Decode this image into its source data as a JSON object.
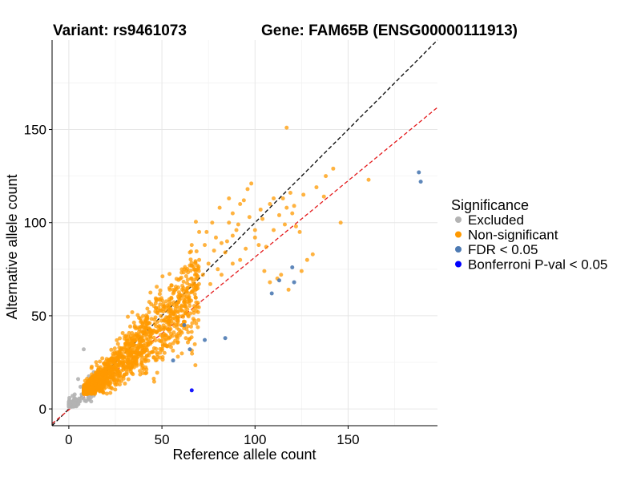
{
  "chart_data": {
    "type": "scatter",
    "title_left": "Variant: rs9461073",
    "title_right": "Gene: FAM65B (ENSG00000111913)",
    "xlabel": "Reference allele count",
    "ylabel": "Alternative allele count",
    "xlim": [
      -9,
      198
    ],
    "ylim": [
      -9,
      198
    ],
    "xticks": [
      0,
      50,
      100,
      150
    ],
    "yticks": [
      0,
      50,
      100,
      150
    ],
    "grid": true,
    "reference_lines": [
      {
        "name": "identity",
        "slope": 1.0,
        "intercept": 0,
        "color": "#000000",
        "style": "dashed"
      },
      {
        "name": "fit",
        "slope": 0.82,
        "intercept": -0.5,
        "color": "#e41a1c",
        "style": "dashed"
      }
    ],
    "legend": {
      "title": "Significance",
      "position": "right",
      "entries": [
        {
          "label": "Excluded",
          "color": "#b3b3b3"
        },
        {
          "label": "Non-significant",
          "color": "#ff9900"
        },
        {
          "label": "FDR < 0.05",
          "color": "#4d7ab3"
        },
        {
          "label": "Bonferroni P-val < 0.05",
          "color": "#0000ff"
        }
      ]
    },
    "series": [
      {
        "name": "Excluded",
        "color": "#b3b3b3",
        "generated_cloud": {
          "count": 120,
          "x_range": [
            0,
            14
          ],
          "ratio_mean": 0.9,
          "ratio_sd": 0.22,
          "min_y": 1,
          "seed": 7
        },
        "points": [
          [
            8,
            32
          ],
          [
            0,
            2
          ],
          [
            2,
            7
          ],
          [
            12,
            4
          ],
          [
            5,
            16
          ]
        ]
      },
      {
        "name": "Non-significant",
        "color": "#ff9900",
        "generated_cloud": {
          "count": 1400,
          "x_range": [
            8,
            70
          ],
          "ratio_mean": 0.9,
          "ratio_sd": 0.2,
          "min_y": 8,
          "seed": 42
        },
        "points": [
          [
            117,
            151
          ],
          [
            138,
            125
          ],
          [
            161,
            123
          ],
          [
            142,
            129
          ],
          [
            146,
            100
          ],
          [
            119,
            116
          ],
          [
            120,
            105
          ],
          [
            113,
            104
          ],
          [
            108,
            110
          ],
          [
            104,
            102
          ],
          [
            98,
            121
          ],
          [
            96,
            118
          ],
          [
            97,
            103
          ],
          [
            92,
            110
          ],
          [
            94,
            112
          ],
          [
            88,
            93
          ],
          [
            85,
            90
          ],
          [
            90,
            96
          ],
          [
            86,
            100
          ],
          [
            100,
            92
          ],
          [
            102,
            88
          ],
          [
            106,
            87
          ],
          [
            110,
            96
          ],
          [
            116,
            99
          ],
          [
            122,
            98
          ],
          [
            124,
            95
          ],
          [
            128,
            80
          ],
          [
            131,
            83
          ],
          [
            125,
            74
          ],
          [
            114,
            72
          ],
          [
            108,
            68
          ],
          [
            112,
            70
          ],
          [
            105,
            74
          ],
          [
            118,
            64
          ],
          [
            75,
            78
          ],
          [
            78,
            85
          ],
          [
            82,
            89
          ],
          [
            80,
            75
          ],
          [
            72,
            72
          ],
          [
            76,
            67
          ],
          [
            82,
            72
          ],
          [
            88,
            78
          ],
          [
            92,
            80
          ],
          [
            84,
            84
          ],
          [
            95,
            86
          ],
          [
            70,
            80
          ],
          [
            68,
            74
          ],
          [
            73,
            88
          ],
          [
            79,
            92
          ],
          [
            88,
            105
          ],
          [
            91,
            99
          ],
          [
            100,
            96
          ],
          [
            103,
            107
          ],
          [
            110,
            113
          ],
          [
            115,
            113
          ],
          [
            117,
            108
          ],
          [
            121,
            109
          ],
          [
            126,
            115
          ],
          [
            133,
            119
          ],
          [
            137,
            114
          ],
          [
            62,
            75
          ],
          [
            65,
            84
          ],
          [
            66,
            70
          ],
          [
            69,
            77
          ],
          [
            74,
            95
          ],
          [
            77,
            100
          ],
          [
            81,
            108
          ],
          [
            86,
            113
          ],
          [
            66,
            88
          ],
          [
            70,
            95
          ]
        ]
      },
      {
        "name": "FDR < 0.05",
        "color": "#4d7ab3",
        "points": [
          [
            188,
            127
          ],
          [
            189,
            122
          ],
          [
            120,
            76
          ],
          [
            113,
            69
          ],
          [
            121,
            68
          ],
          [
            109,
            62
          ],
          [
            84,
            38
          ],
          [
            73,
            37
          ],
          [
            65,
            32
          ],
          [
            56,
            26
          ],
          [
            62,
            45
          ]
        ]
      },
      {
        "name": "Bonferroni P-val < 0.05",
        "color": "#0000ff",
        "points": [
          [
            66,
            10
          ]
        ]
      }
    ]
  }
}
